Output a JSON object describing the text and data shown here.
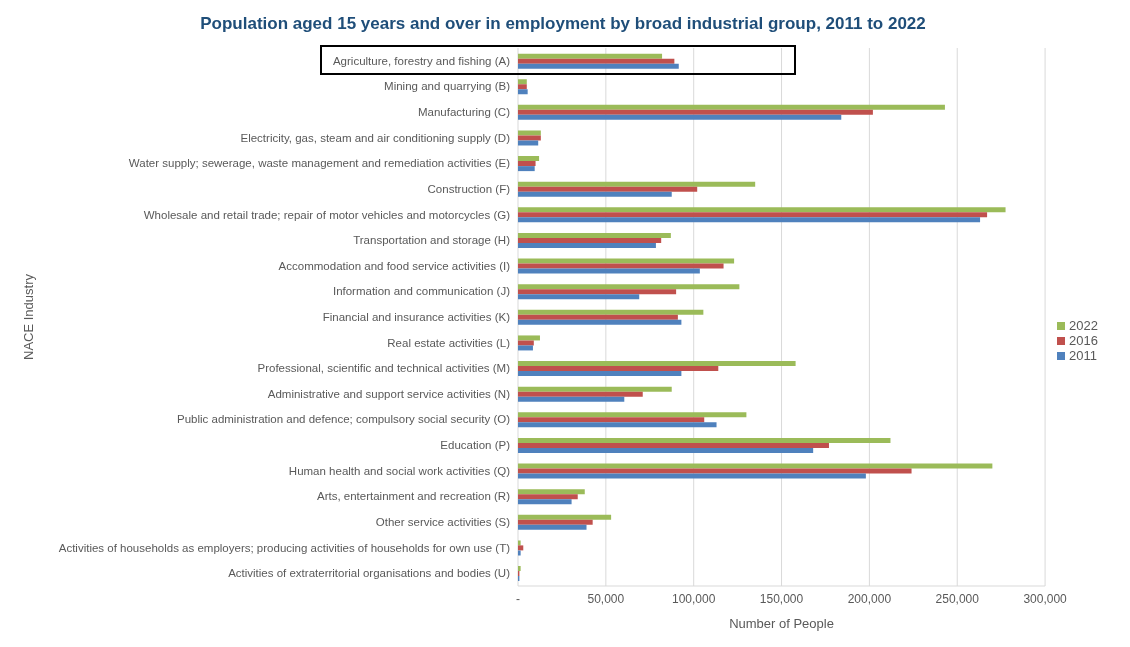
{
  "chart_data": {
    "type": "bar",
    "orientation": "horizontal",
    "title": "Population aged 15 years and over in employment by broad industrial group, 2011 to 2022",
    "xlabel": "Number of People",
    "ylabel": "NACE Industry",
    "categories": [
      "Agriculture, forestry and fishing (A)",
      "Mining and quarrying (B)",
      "Manufacturing (C)",
      "Electricity, gas, steam and air conditioning supply (D)",
      "Water supply; sewerage, waste management and remediation activities (E)",
      "Construction (F)",
      "Wholesale and retail trade; repair of motor vehicles and motorcycles (G)",
      "Transportation and storage (H)",
      "Accommodation and food service activities (I)",
      "Information and communication (J)",
      "Financial and insurance activities (K)",
      "Real estate activities (L)",
      "Professional, scientific and technical activities (M)",
      "Administrative and support service activities (N)",
      "Public administration and defence; compulsory social security (O)",
      "Education (P)",
      "Human health and social work activities (Q)",
      "Arts, entertainment and recreation (R)",
      "Other service activities (S)",
      "Activities of households as employers; producing activities of households for own use (T)",
      "Activities of extraterritorial organisations and bodies (U)"
    ],
    "series": [
      {
        "name": "2022",
        "color": "#9bbb59",
        "values": [
          82000,
          5000,
          243000,
          13000,
          12000,
          135000,
          277500,
          87000,
          123000,
          126000,
          105500,
          12500,
          158000,
          87500,
          130000,
          212000,
          270000,
          38000,
          53000,
          1500,
          1500
        ]
      },
      {
        "name": "2016",
        "color": "#c0504d",
        "values": [
          89000,
          5000,
          202000,
          13000,
          10000,
          102000,
          267000,
          81500,
          117000,
          90000,
          91000,
          9000,
          114000,
          71000,
          106000,
          177000,
          224000,
          34000,
          42500,
          3000,
          800
        ]
      },
      {
        "name": "2011",
        "color": "#4f81bd",
        "values": [
          91500,
          5500,
          184000,
          11500,
          9500,
          87500,
          263000,
          78500,
          103500,
          69000,
          93000,
          8500,
          93000,
          60500,
          113000,
          168000,
          198000,
          30500,
          39000,
          1500,
          800
        ]
      }
    ],
    "xlim": [
      0,
      300000
    ],
    "xticks": [
      {
        "value": 0,
        "label": "-"
      },
      {
        "value": 50000,
        "label": "50,000"
      },
      {
        "value": 100000,
        "label": "100,000"
      },
      {
        "value": 150000,
        "label": "150,000"
      },
      {
        "value": 200000,
        "label": "200,000"
      },
      {
        "value": 250000,
        "label": "250,000"
      },
      {
        "value": 300000,
        "label": "300,000"
      }
    ],
    "grid": "x",
    "legend": "right"
  }
}
